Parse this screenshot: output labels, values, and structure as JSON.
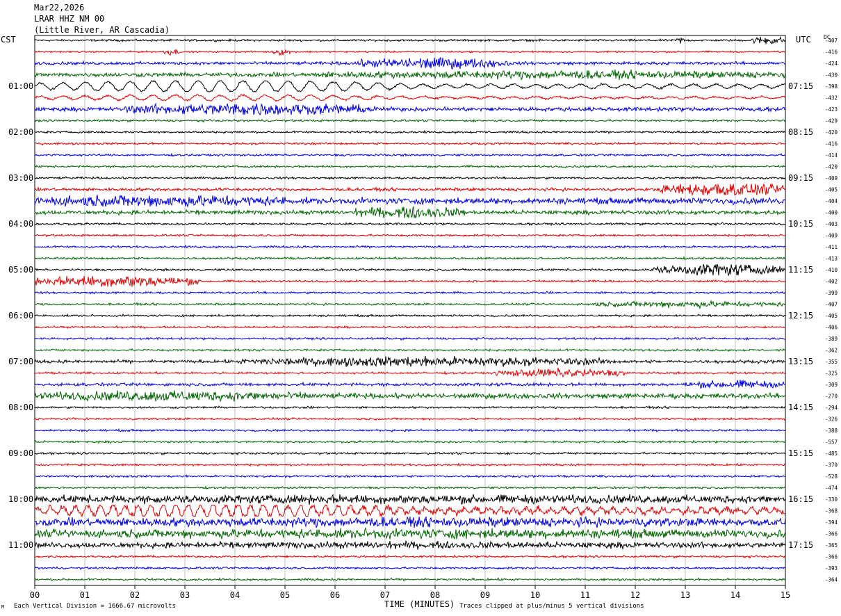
{
  "header": {
    "date": "Mar22,2026",
    "station": "LRAR HHZ NM 00",
    "location": "(Little River, AR Cascadia)"
  },
  "corner": {
    "left_tz": "CST",
    "right_tz": "UTC",
    "dc": "DC"
  },
  "footer": {
    "xlabel": "TIME (MINUTES)",
    "scale_note": "Each Vertical Division = 1666.67 microvolts",
    "clip_note": "Traces clipped at plus/minus 5 vertical divisions",
    "logo_mark": "M"
  },
  "colors": {
    "cycle": [
      "#000000",
      "#e00000",
      "#0000e0",
      "#006400"
    ],
    "grid": "#999999"
  },
  "chart_data": {
    "type": "line",
    "title": "LRAR HHZ NM 00",
    "xlabel": "TIME (MINUTES)",
    "xlim": [
      0,
      15
    ],
    "x_ticks": [
      "00",
      "01",
      "02",
      "03",
      "04",
      "05",
      "06",
      "07",
      "08",
      "09",
      "10",
      "11",
      "12",
      "13",
      "14",
      "15"
    ],
    "left_hour_labels": [
      "01:00",
      "02:00",
      "03:00",
      "04:00",
      "05:00",
      "06:00",
      "07:00",
      "08:00",
      "09:00",
      "10:00",
      "11:00"
    ],
    "right_hour_labels": [
      "07:15",
      "08:15",
      "09:15",
      "10:15",
      "11:15",
      "12:15",
      "13:15",
      "14:15",
      "15:15",
      "16:15",
      "17:15"
    ],
    "dc_offsets": [
      -407,
      -416,
      -424,
      -430,
      -398,
      -432,
      -423,
      -429,
      -420,
      -416,
      -414,
      -420,
      -409,
      -405,
      -404,
      -400,
      -403,
      -409,
      -411,
      -413,
      -410,
      -402,
      -399,
      -407,
      -405,
      -406,
      -389,
      -362,
      -355,
      -325,
      -309,
      -270,
      -294,
      -326,
      -388,
      -557,
      -485,
      -379,
      -528,
      -474,
      -330,
      -368,
      -394,
      -366,
      -365,
      -366,
      -393,
      -364
    ],
    "trace_activity": [
      {
        "trace": 0,
        "amp": 1,
        "events": [
          [
            12.8,
            13.0,
            3
          ],
          [
            14.3,
            15,
            4
          ]
        ]
      },
      {
        "trace": 1,
        "amp": 0.8,
        "events": [
          [
            2.55,
            2.9,
            3
          ],
          [
            4.75,
            5.1,
            3
          ]
        ]
      },
      {
        "trace": 2,
        "amp": 1.5,
        "events": [
          [
            6.4,
            9.5,
            5
          ]
        ]
      },
      {
        "trace": 3,
        "amp": 2,
        "events": [
          [
            5.6,
            15,
            2.5
          ]
        ]
      },
      {
        "trace": 4,
        "amp": 1,
        "wave": [
          0.45,
          8
        ]
      },
      {
        "trace": 5,
        "amp": 1,
        "wave": [
          0.45,
          4
        ]
      },
      {
        "trace": 6,
        "amp": 2,
        "events": [
          [
            1.8,
            6.8,
            5
          ]
        ]
      },
      {
        "trace": 13,
        "amp": 1.5,
        "events": [
          [
            12.5,
            15,
            7
          ]
        ]
      },
      {
        "trace": 14,
        "amp": 3,
        "events": [
          [
            0,
            5,
            4
          ]
        ]
      },
      {
        "trace": 15,
        "amp": 2,
        "events": [
          [
            6.4,
            8.6,
            5
          ]
        ]
      },
      {
        "trace": 20,
        "amp": 1,
        "events": [
          [
            12.3,
            15,
            6
          ]
        ]
      },
      {
        "trace": 21,
        "amp": 1,
        "events": [
          [
            0,
            3.3,
            6
          ]
        ]
      },
      {
        "trace": 23,
        "amp": 1,
        "events": [
          [
            11,
            15,
            2.5
          ]
        ]
      },
      {
        "trace": 28,
        "amp": 1.5,
        "events": [
          [
            4.1,
            11.5,
            4
          ]
        ]
      },
      {
        "trace": 29,
        "amp": 1,
        "events": [
          [
            9.2,
            11.9,
            4
          ]
        ]
      },
      {
        "trace": 30,
        "amp": 1.5,
        "events": [
          [
            13,
            15,
            3
          ]
        ]
      },
      {
        "trace": 31,
        "amp": 2.5,
        "events": [
          [
            0,
            5.5,
            3
          ]
        ]
      },
      {
        "trace": 40,
        "amp": 3,
        "events": [
          [
            0,
            15,
            1.5
          ]
        ]
      },
      {
        "trace": 41,
        "amp": 3,
        "wave": [
          0.25,
          9
        ]
      },
      {
        "trace": 42,
        "amp": 3,
        "events": [
          [
            0,
            15,
            2
          ]
        ]
      },
      {
        "trace": 43,
        "amp": 3,
        "events": [
          [
            0,
            15,
            2
          ]
        ]
      },
      {
        "trace": 44,
        "amp": 2,
        "events": [
          [
            0,
            15,
            1.5
          ]
        ]
      }
    ]
  }
}
